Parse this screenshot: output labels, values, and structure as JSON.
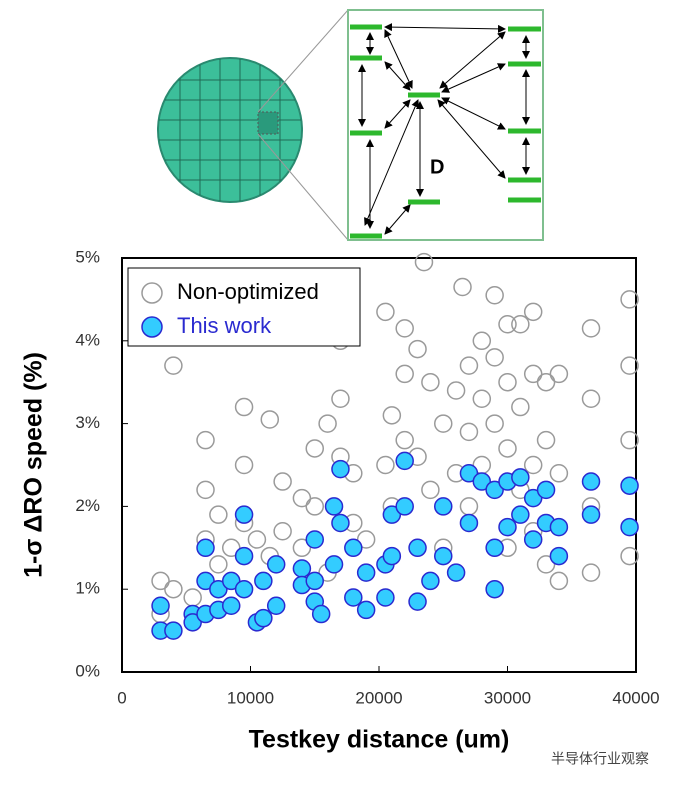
{
  "diagram": {
    "label": "D"
  },
  "watermark": "半导体行业观察",
  "chart_data": {
    "type": "scatter",
    "xlabel": "Testkey distance (um)",
    "ylabel": "1-σ ΔRO speed (%)",
    "xlim": [
      0,
      40000
    ],
    "xticks": [
      0,
      10000,
      20000,
      30000,
      40000
    ],
    "ylim": [
      0,
      5
    ],
    "yticks": [
      {
        "value": 0,
        "label": "0%"
      },
      {
        "value": 1,
        "label": "1%"
      },
      {
        "value": 2,
        "label": "2%"
      },
      {
        "value": 3,
        "label": "3%"
      },
      {
        "value": 4,
        "label": "4%"
      },
      {
        "value": 5,
        "label": "5%"
      }
    ],
    "legend": "upper left",
    "series": [
      {
        "name": "Non-optimized",
        "color": "#9a9a9a",
        "x": [
          3000,
          3000,
          4000,
          4000,
          5500,
          6500,
          6500,
          6500,
          7500,
          7500,
          8500,
          9500,
          9500,
          9500,
          10500,
          11500,
          11500,
          12500,
          12500,
          14000,
          14000,
          15000,
          15000,
          16000,
          16000,
          17000,
          17000,
          17000,
          18000,
          18000,
          19000,
          20500,
          20500,
          21000,
          21000,
          22000,
          22000,
          22000,
          23000,
          23000,
          23500,
          24000,
          24000,
          25000,
          25000,
          26000,
          26000,
          26500,
          27000,
          27000,
          27000,
          28000,
          28000,
          28000,
          29000,
          29000,
          29000,
          30000,
          30000,
          30000,
          30000,
          31000,
          31000,
          31000,
          32000,
          32000,
          32000,
          32000,
          33000,
          33000,
          33000,
          34000,
          34000,
          34000,
          36500,
          36500,
          36500,
          36500,
          39500,
          39500,
          39500,
          39500
        ],
        "values": [
          1.1,
          0.7,
          3.7,
          1.0,
          0.9,
          2.8,
          2.2,
          1.6,
          1.9,
          1.3,
          1.5,
          3.2,
          2.5,
          1.8,
          1.6,
          3.05,
          1.4,
          2.3,
          1.7,
          2.1,
          1.5,
          2.7,
          2.0,
          3.0,
          1.2,
          4.0,
          3.3,
          2.6,
          2.4,
          1.8,
          1.6,
          4.35,
          2.5,
          3.1,
          2.0,
          4.15,
          3.6,
          2.8,
          3.9,
          2.6,
          4.95,
          3.5,
          2.2,
          3.0,
          1.5,
          3.4,
          2.4,
          4.65,
          3.7,
          2.9,
          2.0,
          4.0,
          3.3,
          2.5,
          4.55,
          3.8,
          3.0,
          4.2,
          3.5,
          2.7,
          1.5,
          4.2,
          3.2,
          2.2,
          4.35,
          3.6,
          2.5,
          1.7,
          3.5,
          2.8,
          1.3,
          3.6,
          2.4,
          1.1,
          4.15,
          3.3,
          2.0,
          1.2,
          4.5,
          3.7,
          2.8,
          1.4
        ]
      },
      {
        "name": "This work",
        "color": "#33ccff",
        "x": [
          3000,
          3000,
          4000,
          5500,
          5500,
          6500,
          6500,
          6500,
          7500,
          7500,
          8500,
          8500,
          9500,
          9500,
          9500,
          10500,
          11000,
          11000,
          12000,
          12000,
          14000,
          14000,
          15000,
          15000,
          15000,
          15500,
          16500,
          16500,
          17000,
          17000,
          18000,
          18000,
          19000,
          19000,
          20500,
          20500,
          21000,
          21000,
          22000,
          22000,
          23000,
          23000,
          24000,
          25000,
          25000,
          26000,
          27000,
          27000,
          28000,
          29000,
          29000,
          29000,
          30000,
          30000,
          31000,
          31000,
          32000,
          32000,
          33000,
          33000,
          34000,
          34000,
          36500,
          36500,
          39500,
          39500
        ],
        "values": [
          0.8,
          0.5,
          0.5,
          0.7,
          0.6,
          1.5,
          1.1,
          0.7,
          1.0,
          0.75,
          1.1,
          0.8,
          1.9,
          1.4,
          1.0,
          0.6,
          1.1,
          0.65,
          1.3,
          0.8,
          1.25,
          1.05,
          1.6,
          1.1,
          0.85,
          0.7,
          2.0,
          1.3,
          2.45,
          1.8,
          1.5,
          0.9,
          1.2,
          0.75,
          1.3,
          0.9,
          1.9,
          1.4,
          2.55,
          2.0,
          1.5,
          0.85,
          1.1,
          2.0,
          1.4,
          1.2,
          2.4,
          1.8,
          2.3,
          2.2,
          1.5,
          1.0,
          2.3,
          1.75,
          2.35,
          1.9,
          2.1,
          1.6,
          2.2,
          1.8,
          1.75,
          1.4,
          2.3,
          1.9,
          2.25,
          1.75
        ]
      }
    ]
  }
}
